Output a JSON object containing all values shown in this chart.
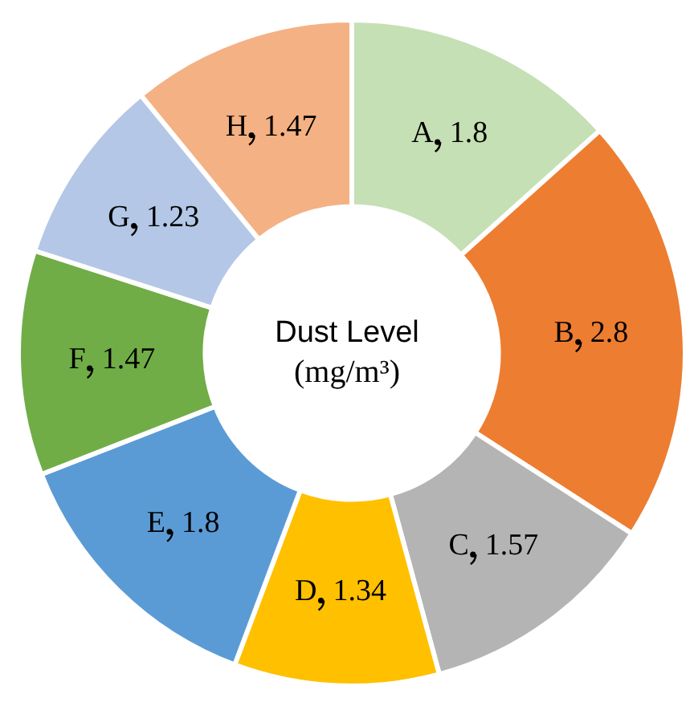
{
  "chart_data": {
    "type": "donut",
    "title": "Dust Level",
    "subtitle": "(mg/m³)",
    "categories": [
      "A",
      "B",
      "C",
      "D",
      "E",
      "F",
      "G",
      "H"
    ],
    "values": [
      1.8,
      2.8,
      1.57,
      1.34,
      1.8,
      1.47,
      1.23,
      1.47
    ],
    "colors": [
      "#c5e0b4",
      "#ed7d31",
      "#b4b4b4",
      "#ffc000",
      "#5b9bd5",
      "#70ad47",
      "#b4c7e7",
      "#f4b183"
    ],
    "data_labels": true,
    "legend": false
  }
}
